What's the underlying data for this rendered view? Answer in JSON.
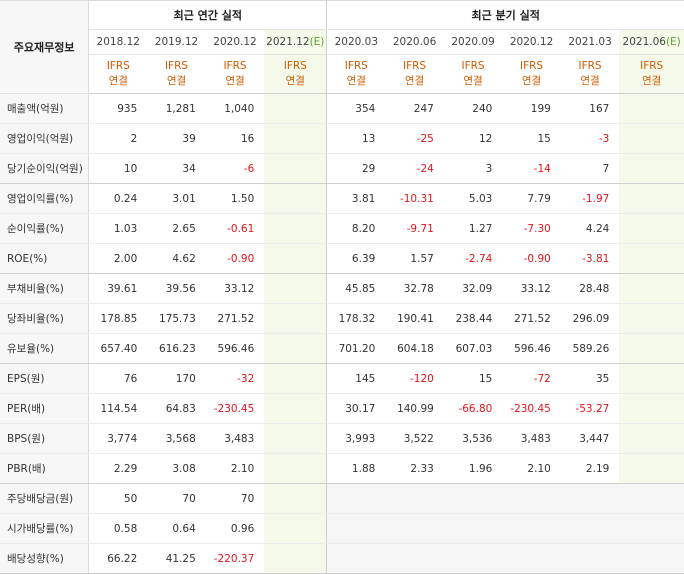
{
  "header": {
    "label_title": "주요재무정보",
    "annual_group": "최근 연간 실적",
    "quarter_group": "최근 분기 실적",
    "annual_periods": [
      "2018.12",
      "2019.12",
      "2020.12"
    ],
    "annual_estimate": {
      "period": "2021.12",
      "mark": "(E)"
    },
    "quarter_periods": [
      "2020.03",
      "2020.06",
      "2020.09",
      "2020.12",
      "2021.03"
    ],
    "quarter_estimate": {
      "period": "2021.06",
      "mark": "(E)"
    },
    "standard_label": "IFRS",
    "standard_sub": "연결"
  },
  "rows": [
    {
      "label": "매출액(억원)",
      "annual": [
        "935",
        "1,281",
        "1,040"
      ],
      "quarter": [
        "354",
        "247",
        "240",
        "199",
        "167"
      ]
    },
    {
      "label": "영업이익(억원)",
      "annual": [
        "2",
        "39",
        "16"
      ],
      "quarter": [
        "13",
        "-25",
        "12",
        "15",
        "-3"
      ]
    },
    {
      "label": "당기순이익(억원)",
      "annual": [
        "10",
        "34",
        "-6"
      ],
      "quarter": [
        "29",
        "-24",
        "3",
        "-14",
        "7"
      ]
    },
    {
      "label": "영업이익률(%)",
      "annual": [
        "0.24",
        "3.01",
        "1.50"
      ],
      "quarter": [
        "3.81",
        "-10.31",
        "5.03",
        "7.79",
        "-1.97"
      ]
    },
    {
      "label": "순이익률(%)",
      "annual": [
        "1.03",
        "2.65",
        "-0.61"
      ],
      "quarter": [
        "8.20",
        "-9.71",
        "1.27",
        "-7.30",
        "4.24"
      ]
    },
    {
      "label": "ROE(%)",
      "annual": [
        "2.00",
        "4.62",
        "-0.90"
      ],
      "quarter": [
        "6.39",
        "1.57",
        "-2.74",
        "-0.90",
        "-3.81"
      ]
    },
    {
      "label": "부채비율(%)",
      "annual": [
        "39.61",
        "39.56",
        "33.12"
      ],
      "quarter": [
        "45.85",
        "32.78",
        "32.09",
        "33.12",
        "28.48"
      ]
    },
    {
      "label": "당좌비율(%)",
      "annual": [
        "178.85",
        "175.73",
        "271.52"
      ],
      "quarter": [
        "178.32",
        "190.41",
        "238.44",
        "271.52",
        "296.09"
      ]
    },
    {
      "label": "유보율(%)",
      "annual": [
        "657.40",
        "616.23",
        "596.46"
      ],
      "quarter": [
        "701.20",
        "604.18",
        "607.03",
        "596.46",
        "589.26"
      ]
    },
    {
      "label": "EPS(원)",
      "annual": [
        "76",
        "170",
        "-32"
      ],
      "quarter": [
        "145",
        "-120",
        "15",
        "-72",
        "35"
      ]
    },
    {
      "label": "PER(배)",
      "annual": [
        "114.54",
        "64.83",
        "-230.45"
      ],
      "quarter": [
        "30.17",
        "140.99",
        "-66.80",
        "-230.45",
        "-53.27"
      ]
    },
    {
      "label": "BPS(원)",
      "annual": [
        "3,774",
        "3,568",
        "3,483"
      ],
      "quarter": [
        "3,993",
        "3,522",
        "3,536",
        "3,483",
        "3,447"
      ]
    },
    {
      "label": "PBR(배)",
      "annual": [
        "2.29",
        "3.08",
        "2.10"
      ],
      "quarter": [
        "1.88",
        "2.33",
        "1.96",
        "2.10",
        "2.19"
      ]
    },
    {
      "label": "주당배당금(원)",
      "annual": [
        "50",
        "70",
        "70"
      ],
      "quarter": []
    },
    {
      "label": "시가배당률(%)",
      "annual": [
        "0.58",
        "0.64",
        "0.96"
      ],
      "quarter": []
    },
    {
      "label": "배당성향(%)",
      "annual": [
        "66.22",
        "41.25",
        "-220.37"
      ],
      "quarter": []
    }
  ]
}
